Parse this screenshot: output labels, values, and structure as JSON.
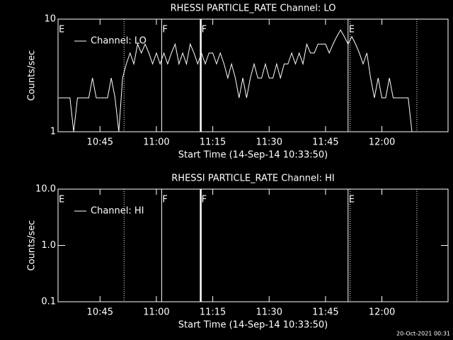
{
  "chart_data": [
    {
      "type": "line",
      "title": "RHESSI PARTICLE_RATE Channel: LO",
      "ylabel": "Counts/sec",
      "xlabel": "Start Time (14-Sep-14 10:33:50)",
      "log_y": true,
      "ylim": [
        1,
        10
      ],
      "yticks": [
        1,
        10
      ],
      "xlim": [
        "10:33:50",
        "12:17:36"
      ],
      "xticks": [
        "10:45",
        "11:00",
        "11:15",
        "11:30",
        "11:45",
        "12:00"
      ],
      "legend": "upper left",
      "x": [
        "10:34",
        "10:35",
        "10:36",
        "10:37",
        "10:38",
        "10:39",
        "10:40",
        "10:41",
        "10:42",
        "10:43",
        "10:44",
        "10:45",
        "10:46",
        "10:47",
        "10:48",
        "10:49",
        "10:50",
        "10:51",
        "10:52",
        "10:53",
        "10:54",
        "10:55",
        "10:56",
        "10:57",
        "10:58",
        "10:59",
        "11:00",
        "11:01",
        "11:02",
        "11:03",
        "11:04",
        "11:05",
        "11:06",
        "11:07",
        "11:08",
        "11:09",
        "11:10",
        "11:11",
        "11:12",
        "11:13",
        "11:14",
        "11:15",
        "11:16",
        "11:17",
        "11:18",
        "11:19",
        "11:20",
        "11:21",
        "11:22",
        "11:23",
        "11:24",
        "11:25",
        "11:26",
        "11:27",
        "11:28",
        "11:29",
        "11:30",
        "11:31",
        "11:32",
        "11:33",
        "11:34",
        "11:35",
        "11:36",
        "11:37",
        "11:38",
        "11:39",
        "11:40",
        "11:41",
        "11:42",
        "11:43",
        "11:44",
        "11:45",
        "11:46",
        "11:47",
        "11:48",
        "11:49",
        "11:50",
        "11:51",
        "11:52",
        "11:53",
        "11:54",
        "11:55",
        "11:56",
        "11:57",
        "11:58",
        "11:59",
        "12:00",
        "12:01",
        "12:02",
        "12:03",
        "12:04",
        "12:05",
        "12:06",
        "12:07",
        "12:08"
      ],
      "series": [
        {
          "name": "Channel: LO",
          "color": "#ffffff",
          "values": [
            2,
            2,
            2,
            2,
            1,
            2,
            2,
            2,
            2,
            3,
            2,
            2,
            2,
            2,
            3,
            2,
            1,
            3,
            4,
            5,
            4,
            6,
            5,
            6,
            5,
            4,
            5,
            4,
            5,
            4,
            5,
            6,
            4,
            5,
            4,
            6,
            5,
            4,
            5,
            4,
            5,
            5,
            4,
            5,
            4,
            3,
            4,
            3,
            2,
            3,
            2,
            3,
            4,
            3,
            3,
            4,
            3,
            3,
            4,
            3,
            4,
            4,
            5,
            4,
            5,
            4,
            6,
            5,
            5,
            6,
            6,
            6,
            5,
            6,
            7,
            8,
            7,
            6,
            7,
            6,
            5,
            4,
            5,
            3,
            2,
            3,
            2,
            2,
            3,
            2,
            2,
            2,
            2,
            2,
            1
          ]
        }
      ],
      "flags": [
        {
          "x": "10:33:50",
          "style": "solid",
          "label": "E"
        },
        {
          "x": "10:51:24",
          "style": "dotted"
        },
        {
          "x": "11:01:24",
          "style": "solid",
          "label": "F"
        },
        {
          "x": "11:11:48",
          "style": "thick",
          "label": "F"
        },
        {
          "x": "11:51:00",
          "style": "solid",
          "label": "E"
        },
        {
          "x": "11:51:32",
          "style": "dotted"
        },
        {
          "x": "12:09:18",
          "style": "dotted"
        }
      ]
    },
    {
      "type": "line",
      "title": "RHESSI PARTICLE_RATE Channel: HI",
      "ylabel": "Counts/sec",
      "xlabel": "Start Time (14-Sep-14 10:33:50)",
      "log_y": true,
      "ylim": [
        0.1,
        10
      ],
      "yticks": [
        0.1,
        {
          "value": 1,
          "label": "1.0"
        },
        {
          "value": 10,
          "label": "10.0"
        }
      ],
      "xlim": [
        "10:33:50",
        "12:17:36"
      ],
      "xticks": [
        "10:45",
        "11:00",
        "11:15",
        "11:30",
        "11:45",
        "12:00"
      ],
      "legend": "upper left",
      "x": [],
      "series": [
        {
          "name": "Channel: HI",
          "color": "#ffffff",
          "values": []
        }
      ],
      "flags": [
        {
          "x": "10:33:50",
          "style": "solid",
          "label": "E"
        },
        {
          "x": "10:51:24",
          "style": "dotted"
        },
        {
          "x": "11:01:24",
          "style": "solid",
          "label": "F"
        },
        {
          "x": "11:11:48",
          "style": "thick",
          "label": "F"
        },
        {
          "x": "11:51:00",
          "style": "solid",
          "label": "E"
        },
        {
          "x": "11:51:32",
          "style": "dotted"
        },
        {
          "x": "12:09:18",
          "style": "dotted"
        }
      ]
    }
  ],
  "footer": "20-Oct-2021 00:31"
}
